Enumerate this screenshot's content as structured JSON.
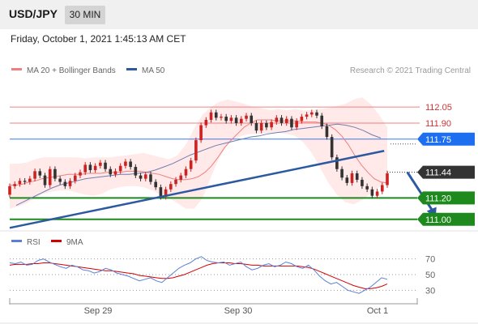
{
  "header": {
    "pair": "USD/JPY",
    "timeframe": "30 MIN"
  },
  "datetime": "Friday, October 1, 2021 1:45:13 AM CET",
  "legend": [
    {
      "label": "MA 20 + Bollinger Bands",
      "color": "#f08080"
    },
    {
      "label": "MA 50",
      "color": "#2c5aa0"
    }
  ],
  "credit": "Research © 2021 Trading Central",
  "rsi_legend": [
    {
      "label": "RSI",
      "color": "#5b7fd6"
    },
    {
      "label": "9MA",
      "color": "#d40000"
    }
  ],
  "chart_data": {
    "type": "line",
    "price_range": [
      110.93,
      112.18
    ],
    "horizontal_levels": [
      {
        "label": "112.05",
        "value": 112.05,
        "style": "text",
        "color": "#cc3333"
      },
      {
        "label": "111.90",
        "value": 111.9,
        "style": "text",
        "color": "#cc3333"
      },
      {
        "label": "111.75",
        "value": 111.75,
        "style": "tag",
        "color": "#1e6ff0"
      },
      {
        "label": "111.44",
        "value": 111.44,
        "style": "tag",
        "color": "#333333"
      },
      {
        "label": "111.20",
        "value": 111.2,
        "style": "tag",
        "color": "#1e8a1e"
      },
      {
        "label": "111.00",
        "value": 111.0,
        "style": "tag",
        "color": "#1e8a1e"
      }
    ],
    "trendline": {
      "from": [
        0,
        110.92
      ],
      "to": [
        76,
        111.64
      ]
    },
    "forecast_arrow": {
      "from": [
        79,
        111.44
      ],
      "to": [
        83,
        111.01
      ]
    },
    "candles": [
      [
        111.23,
        111.31
      ],
      [
        111.31,
        111.33
      ],
      [
        111.33,
        111.36
      ],
      [
        111.36,
        111.35
      ],
      [
        111.35,
        111.38
      ],
      [
        111.38,
        111.45
      ],
      [
        111.45,
        111.41
      ],
      [
        111.41,
        111.32
      ],
      [
        111.32,
        111.47
      ],
      [
        111.47,
        111.38
      ],
      [
        111.38,
        111.35
      ],
      [
        111.35,
        111.31
      ],
      [
        111.31,
        111.36
      ],
      [
        111.36,
        111.41
      ],
      [
        111.41,
        111.44
      ],
      [
        111.44,
        111.51
      ],
      [
        111.51,
        111.46
      ],
      [
        111.46,
        111.5
      ],
      [
        111.5,
        111.53
      ],
      [
        111.53,
        111.47
      ],
      [
        111.47,
        111.42
      ],
      [
        111.42,
        111.45
      ],
      [
        111.45,
        111.5
      ],
      [
        111.5,
        111.54
      ],
      [
        111.54,
        111.49
      ],
      [
        111.49,
        111.41
      ],
      [
        111.41,
        111.38
      ],
      [
        111.38,
        111.42
      ],
      [
        111.42,
        111.35
      ],
      [
        111.35,
        111.3
      ],
      [
        111.3,
        111.21
      ],
      [
        111.21,
        111.28
      ],
      [
        111.28,
        111.33
      ],
      [
        111.33,
        111.37
      ],
      [
        111.37,
        111.41
      ],
      [
        111.41,
        111.47
      ],
      [
        111.47,
        111.55
      ],
      [
        111.55,
        111.74
      ],
      [
        111.74,
        111.88
      ],
      [
        111.88,
        111.93
      ],
      [
        111.93,
        112.0
      ],
      [
        112.0,
        111.95
      ],
      [
        111.95,
        111.96
      ],
      [
        111.96,
        111.92
      ],
      [
        111.92,
        111.95
      ],
      [
        111.95,
        111.9
      ],
      [
        111.9,
        111.94
      ],
      [
        111.94,
        111.97
      ],
      [
        111.97,
        111.9
      ],
      [
        111.9,
        111.83
      ],
      [
        111.83,
        111.9
      ],
      [
        111.9,
        111.86
      ],
      [
        111.86,
        111.91
      ],
      [
        111.91,
        111.95
      ],
      [
        111.95,
        111.9
      ],
      [
        111.9,
        111.94
      ],
      [
        111.94,
        111.86
      ],
      [
        111.86,
        111.92
      ],
      [
        111.92,
        111.96
      ],
      [
        111.96,
        111.98
      ],
      [
        111.98,
        112.0
      ],
      [
        112.0,
        111.97
      ],
      [
        111.97,
        111.87
      ],
      [
        111.87,
        111.77
      ],
      [
        111.77,
        111.58
      ],
      [
        111.58,
        111.47
      ],
      [
        111.47,
        111.39
      ],
      [
        111.39,
        111.34
      ],
      [
        111.34,
        111.43
      ],
      [
        111.43,
        111.37
      ],
      [
        111.37,
        111.31
      ],
      [
        111.31,
        111.28
      ],
      [
        111.28,
        111.22
      ],
      [
        111.22,
        111.26
      ],
      [
        111.26,
        111.32
      ],
      [
        111.32,
        111.43
      ]
    ],
    "ma20": [
      111.32,
      111.32,
      111.33,
      111.35,
      111.36,
      111.38,
      111.39,
      111.4,
      111.41,
      111.42,
      111.42,
      111.42,
      111.43,
      111.43,
      111.43,
      111.44,
      111.44,
      111.44,
      111.45,
      111.45,
      111.45,
      111.44,
      111.43,
      111.42,
      111.4,
      111.38,
      111.37,
      111.37,
      111.38,
      111.4,
      111.44,
      111.5,
      111.58,
      111.67,
      111.74,
      111.8,
      111.86,
      111.9,
      111.93,
      111.93,
      111.93,
      111.92,
      111.92,
      111.92,
      111.92,
      111.91,
      111.91,
      111.91,
      111.9,
      111.88,
      111.84,
      111.78,
      111.7,
      111.6,
      111.51,
      111.44,
      111.38,
      111.35,
      111.34
    ],
    "ma50": [
      111.13,
      111.17,
      111.21,
      111.25,
      111.29,
      111.32,
      111.34,
      111.36,
      111.38,
      111.39,
      111.4,
      111.41,
      111.42,
      111.42,
      111.43,
      111.44,
      111.46,
      111.49,
      111.52,
      111.56,
      111.6,
      111.63,
      111.66,
      111.69,
      111.71,
      111.73,
      111.75,
      111.77,
      111.78,
      111.8,
      111.81,
      111.82,
      111.84,
      111.85,
      111.86,
      111.87,
      111.88,
      111.89,
      111.88,
      111.86,
      111.83,
      111.79,
      111.76
    ],
    "bollinger_upper": [
      111.52,
      111.52,
      111.53,
      111.56,
      111.58,
      111.58,
      111.58,
      111.58,
      111.58,
      111.57,
      111.58,
      111.58,
      111.58,
      111.59,
      111.6,
      111.61,
      111.62,
      111.6,
      111.58,
      111.56,
      111.6,
      111.7,
      111.85,
      111.98,
      112.05,
      112.1,
      112.12,
      112.1,
      112.08,
      112.05,
      112.04,
      112.02,
      112.03,
      112.02,
      112.03,
      112.02,
      112.02,
      112.03,
      112.04,
      112.06,
      112.08,
      112.12,
      112.14,
      112.08,
      111.98,
      111.86
    ],
    "bollinger_lower": [
      111.1,
      111.12,
      111.15,
      111.2,
      111.24,
      111.26,
      111.27,
      111.27,
      111.25,
      111.23,
      111.22,
      111.24,
      111.28,
      111.3,
      111.31,
      111.31,
      111.3,
      111.27,
      111.23,
      111.2,
      111.15,
      111.1,
      111.1,
      111.2,
      111.4,
      111.58,
      111.7,
      111.76,
      111.79,
      111.8,
      111.8,
      111.81,
      111.81,
      111.8,
      111.78,
      111.72,
      111.62,
      111.48,
      111.34,
      111.23,
      111.16,
      111.14,
      111.18,
      111.24,
      111.3,
      111.34
    ],
    "rsi": {
      "axis_ticks": [
        70,
        50,
        30
      ],
      "rsi_values": [
        65,
        64,
        66,
        62,
        63,
        68,
        70,
        66,
        63,
        60,
        58,
        62,
        60,
        56,
        55,
        52,
        54,
        58,
        56,
        52,
        50,
        48,
        45,
        42,
        44,
        46,
        42,
        40,
        46,
        52,
        58,
        62,
        65,
        70,
        73,
        68,
        66,
        65,
        66,
        62,
        64,
        66,
        60,
        56,
        58,
        62,
        64,
        60,
        62,
        66,
        64,
        60,
        58,
        62,
        56,
        48,
        42,
        38,
        40,
        35,
        30,
        28,
        26,
        30,
        34,
        40,
        46,
        44
      ],
      "ma_values": [
        62,
        63,
        63,
        63,
        64,
        64,
        65,
        65,
        64,
        63,
        62,
        61,
        60,
        59,
        58,
        57,
        56,
        55,
        55,
        54,
        53,
        52,
        51,
        49,
        48,
        47,
        46,
        45,
        45,
        46,
        48,
        50,
        53,
        56,
        59,
        62,
        64,
        65,
        65,
        65,
        64,
        64,
        63,
        62,
        62,
        61,
        61,
        61,
        61,
        61,
        61,
        61,
        60,
        59,
        57,
        54,
        51,
        48,
        45,
        42,
        39,
        36,
        34,
        32,
        32,
        33,
        35,
        38
      ]
    },
    "x_tick_labels": [
      "Sep 29",
      "Sep 30",
      "Oct 1"
    ]
  }
}
